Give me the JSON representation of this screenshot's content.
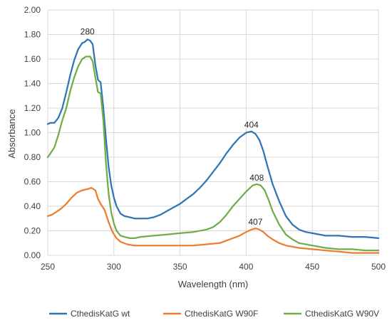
{
  "chart_data": {
    "type": "line",
    "xlabel": "Wavelength (nm)",
    "ylabel": "Absorbance",
    "xlim": [
      250,
      500
    ],
    "ylim": [
      0,
      2.0
    ],
    "x_ticks": [
      "250",
      "300",
      "350",
      "400",
      "450",
      "500"
    ],
    "y_ticks": [
      "0.00",
      "0.20",
      "0.40",
      "0.60",
      "0.80",
      "1.00",
      "1.20",
      "1.40",
      "1.60",
      "1.80",
      "2.00"
    ],
    "grid": "vertical and horizontal",
    "legend_position": "bottom",
    "series": [
      {
        "name": "CthedisKatG wt",
        "color": "#2e75b6",
        "points": [
          [
            250,
            1.07
          ],
          [
            252,
            1.08
          ],
          [
            255,
            1.08
          ],
          [
            258,
            1.12
          ],
          [
            261,
            1.2
          ],
          [
            264,
            1.33
          ],
          [
            267,
            1.47
          ],
          [
            270,
            1.59
          ],
          [
            273,
            1.68
          ],
          [
            276,
            1.73
          ],
          [
            278,
            1.74
          ],
          [
            280,
            1.76
          ],
          [
            282,
            1.75
          ],
          [
            284,
            1.72
          ],
          [
            286,
            1.55
          ],
          [
            288,
            1.43
          ],
          [
            290,
            1.41
          ],
          [
            292,
            1.2
          ],
          [
            294,
            0.95
          ],
          [
            296,
            0.72
          ],
          [
            298,
            0.57
          ],
          [
            300,
            0.47
          ],
          [
            302,
            0.4
          ],
          [
            305,
            0.34
          ],
          [
            308,
            0.32
          ],
          [
            312,
            0.31
          ],
          [
            316,
            0.3
          ],
          [
            320,
            0.3
          ],
          [
            325,
            0.3
          ],
          [
            330,
            0.31
          ],
          [
            335,
            0.33
          ],
          [
            340,
            0.36
          ],
          [
            345,
            0.39
          ],
          [
            350,
            0.42
          ],
          [
            355,
            0.46
          ],
          [
            360,
            0.5
          ],
          [
            365,
            0.55
          ],
          [
            370,
            0.61
          ],
          [
            375,
            0.68
          ],
          [
            380,
            0.75
          ],
          [
            385,
            0.83
          ],
          [
            390,
            0.9
          ],
          [
            395,
            0.96
          ],
          [
            400,
            1.0
          ],
          [
            404,
            1.01
          ],
          [
            407,
            0.99
          ],
          [
            410,
            0.94
          ],
          [
            413,
            0.85
          ],
          [
            416,
            0.73
          ],
          [
            420,
            0.58
          ],
          [
            425,
            0.44
          ],
          [
            430,
            0.32
          ],
          [
            435,
            0.25
          ],
          [
            440,
            0.21
          ],
          [
            445,
            0.19
          ],
          [
            450,
            0.18
          ],
          [
            460,
            0.16
          ],
          [
            470,
            0.16
          ],
          [
            480,
            0.15
          ],
          [
            490,
            0.15
          ],
          [
            500,
            0.14
          ]
        ]
      },
      {
        "name": "CthedisKatG W90F",
        "color": "#ed7d31",
        "points": [
          [
            250,
            0.32
          ],
          [
            253,
            0.33
          ],
          [
            256,
            0.35
          ],
          [
            260,
            0.38
          ],
          [
            264,
            0.42
          ],
          [
            268,
            0.47
          ],
          [
            272,
            0.51
          ],
          [
            276,
            0.53
          ],
          [
            280,
            0.54
          ],
          [
            283,
            0.55
          ],
          [
            286,
            0.53
          ],
          [
            288,
            0.46
          ],
          [
            290,
            0.42
          ],
          [
            293,
            0.37
          ],
          [
            296,
            0.27
          ],
          [
            299,
            0.19
          ],
          [
            302,
            0.14
          ],
          [
            305,
            0.11
          ],
          [
            310,
            0.09
          ],
          [
            315,
            0.08
          ],
          [
            320,
            0.08
          ],
          [
            330,
            0.08
          ],
          [
            340,
            0.08
          ],
          [
            350,
            0.08
          ],
          [
            360,
            0.08
          ],
          [
            370,
            0.09
          ],
          [
            380,
            0.1
          ],
          [
            385,
            0.12
          ],
          [
            390,
            0.14
          ],
          [
            395,
            0.16
          ],
          [
            400,
            0.19
          ],
          [
            404,
            0.21
          ],
          [
            407,
            0.22
          ],
          [
            410,
            0.21
          ],
          [
            413,
            0.19
          ],
          [
            416,
            0.16
          ],
          [
            420,
            0.13
          ],
          [
            425,
            0.1
          ],
          [
            430,
            0.08
          ],
          [
            440,
            0.06
          ],
          [
            450,
            0.05
          ],
          [
            460,
            0.04
          ],
          [
            470,
            0.03
          ],
          [
            480,
            0.02
          ],
          [
            490,
            0.02
          ],
          [
            500,
            0.02
          ]
        ]
      },
      {
        "name": "CthedisKatG W90V",
        "color": "#70ad47",
        "points": [
          [
            250,
            0.8
          ],
          [
            252,
            0.83
          ],
          [
            255,
            0.88
          ],
          [
            258,
            0.98
          ],
          [
            261,
            1.1
          ],
          [
            264,
            1.2
          ],
          [
            267,
            1.34
          ],
          [
            270,
            1.45
          ],
          [
            273,
            1.54
          ],
          [
            276,
            1.6
          ],
          [
            279,
            1.62
          ],
          [
            282,
            1.62
          ],
          [
            284,
            1.58
          ],
          [
            286,
            1.45
          ],
          [
            288,
            1.33
          ],
          [
            290,
            1.32
          ],
          [
            292,
            1.1
          ],
          [
            294,
            0.75
          ],
          [
            296,
            0.5
          ],
          [
            298,
            0.35
          ],
          [
            300,
            0.26
          ],
          [
            302,
            0.2
          ],
          [
            305,
            0.16
          ],
          [
            308,
            0.15
          ],
          [
            312,
            0.14
          ],
          [
            316,
            0.14
          ],
          [
            320,
            0.15
          ],
          [
            330,
            0.16
          ],
          [
            340,
            0.17
          ],
          [
            350,
            0.18
          ],
          [
            360,
            0.19
          ],
          [
            370,
            0.21
          ],
          [
            375,
            0.23
          ],
          [
            380,
            0.27
          ],
          [
            385,
            0.33
          ],
          [
            390,
            0.4
          ],
          [
            395,
            0.46
          ],
          [
            400,
            0.52
          ],
          [
            405,
            0.57
          ],
          [
            408,
            0.58
          ],
          [
            411,
            0.57
          ],
          [
            414,
            0.53
          ],
          [
            417,
            0.45
          ],
          [
            420,
            0.36
          ],
          [
            425,
            0.25
          ],
          [
            430,
            0.17
          ],
          [
            435,
            0.13
          ],
          [
            440,
            0.1
          ],
          [
            450,
            0.08
          ],
          [
            460,
            0.06
          ],
          [
            470,
            0.05
          ],
          [
            480,
            0.05
          ],
          [
            490,
            0.04
          ],
          [
            500,
            0.04
          ]
        ]
      }
    ],
    "annotations": [
      {
        "text": "280",
        "x": 280,
        "y": 1.8
      },
      {
        "text": "404",
        "x": 404,
        "y": 1.04
      },
      {
        "text": "408",
        "x": 408,
        "y": 0.61
      },
      {
        "text": "407",
        "x": 407,
        "y": 0.25
      }
    ]
  }
}
